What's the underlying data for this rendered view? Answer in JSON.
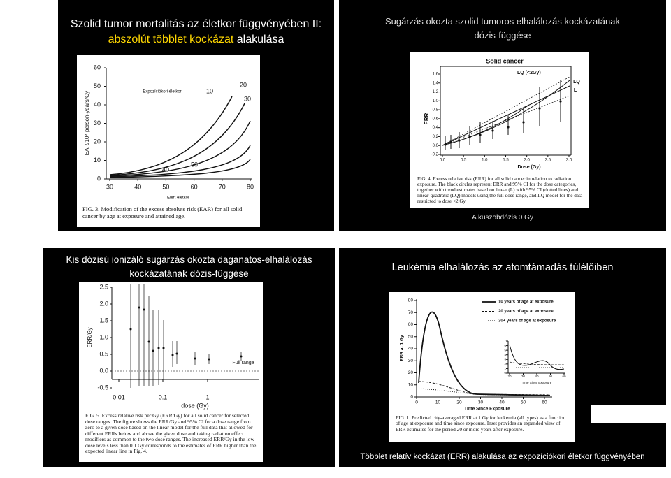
{
  "slides": [
    {
      "title": [
        "Szolid tumor mortalitás az életkor függvényében II:"
      ],
      "title_highlight": "abszolút többlet kockázat",
      "title_rest": "alakulása",
      "figure": {
        "y_label": "EAR/10⁴ person-years/Gy",
        "y_ticks": [
          "60",
          "50",
          "40",
          "30",
          "20",
          "10",
          "0"
        ],
        "x_ticks": [
          "30",
          "40",
          "50",
          "60",
          "70",
          "80"
        ],
        "x_label": "Elért életkor",
        "legend_label": "Expozíciókori életkor",
        "curve_labels": [
          "10",
          "20",
          "30",
          "40",
          "50"
        ],
        "caption": "FIG. 3. Modification of the excess absolute risk (EAR) for all solid cancer by age at exposure and attained age."
      }
    },
    {
      "title": [
        "Sugárzás okozta szolid tumoros elhalálozás kockázatának",
        "dózis-függése"
      ],
      "figure": {
        "plot_title": "Solid cancer",
        "y_label": "ERR",
        "y_ticks": [
          "1.6",
          "1.4",
          "1.2",
          "1.0",
          "0.8",
          "0.6",
          "0.4",
          "0.2",
          "0.0",
          "-0.2"
        ],
        "x_ticks": [
          "0.0",
          "0.5",
          "1.0",
          "1.5",
          "2.0",
          "2.5",
          "3.0"
        ],
        "x_label": "Dose (Gy)",
        "curve_labels": [
          "LQ (<2Gy)",
          "LQ",
          "L"
        ],
        "caption": "FIG. 4. Excess relative risk (ERR) for all solid cancer in relation to radiation exposure. The black circles represent ERR and 95% CI for the dose categories, together with trend estimates based on linear (L) with 95% CI (dotted lines) and linear-quadratic (LQ) models using the full dose range, and LQ model for the data restricted to dose <2 Gy."
      },
      "footer": "A küszöbdózis 0 Gy"
    },
    {
      "title": [
        "Kis dózisú ionizáló sugárzás okozta daganatos-elhalálozás",
        "kockázatának dózis-függése"
      ],
      "figure": {
        "y_label": "ERR/Gy",
        "y_ticks": [
          "2.5",
          "2.0",
          "1.5",
          "1.0",
          "0.5",
          "0.0",
          "-0.5"
        ],
        "x_ticks": [
          "0.01",
          "0.1",
          "1"
        ],
        "x_label": "dose (Gy)",
        "annotation": "Full range",
        "caption": "FIG. 5. Excess relative risk per Gy (ERR/Gy) for all solid cancer for selected dose ranges. The figure shows the ERR/Gy and 95% CI for a dose range from zero to a given dose based on the linear model for the full data that allowed for different ERRs below and above the given dose and taking radiation effect modifiers as common to the two dose ranges. The increased ERR/Gy in the low-dose levels less than 0.1 Gy corresponds to the estimates of ERR higher than the expected linear line in Fig. 4."
      }
    },
    {
      "title": [
        "Leukémia elhalálozás az atomtámadás túlélőiben"
      ],
      "figure": {
        "legend": [
          "10 years of age at exposure",
          "20 years of age at exposure",
          "30+ years of age at exposure"
        ],
        "y_label": "ERR at 1 Gy",
        "y_ticks": [
          "80",
          "70",
          "60",
          "50",
          "40",
          "30",
          "20",
          "10",
          "0"
        ],
        "x_ticks": [
          "0",
          "10",
          "20",
          "30",
          "40",
          "50",
          "60"
        ],
        "x_label": "Time Since Exposure",
        "inset": {
          "y_ticks": [
            "7",
            "6",
            "5",
            "4",
            "3",
            "2",
            "1",
            "0"
          ],
          "x_ticks": [
            "20",
            "30",
            "40",
            "50",
            "60"
          ],
          "x_label": "Time Since Exposure"
        },
        "caption": "FIG. 1. Predicted city-averaged ERR at 1 Gy for leukemia (all types) as a function of age at exposure and time since exposure. Inset provides an expanded view of ERR estimates for the period 20 or more years after exposure."
      },
      "footer": "Többlet relatív kockázat (ERR) alakulása az expozíciókori életkor függvényében"
    }
  ]
}
